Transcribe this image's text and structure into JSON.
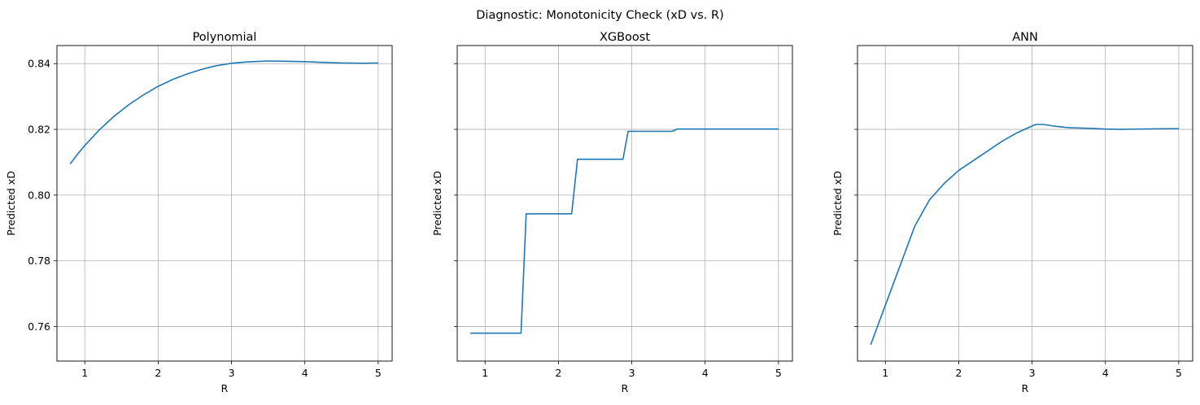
{
  "suptitle": "Diagnostic: Monotonicity Check (xD vs. R)",
  "chart_data": [
    {
      "type": "line",
      "title": "Polynomial",
      "xlabel": "R",
      "ylabel": "Predicted xD",
      "xlim": [
        0.62,
        5.19
      ],
      "ylim": [
        0.7495,
        0.8455
      ],
      "xticks": [
        1,
        2,
        3,
        4,
        5
      ],
      "yticks": [
        0.76,
        0.78,
        0.8,
        0.82,
        0.84
      ],
      "ytick_labels_visible": true,
      "grid": true,
      "line_color": "#1f77b4",
      "x": [
        0.8,
        0.9,
        1.0,
        1.2,
        1.4,
        1.6,
        1.8,
        2.0,
        2.2,
        2.4,
        2.6,
        2.8,
        3.0,
        3.2,
        3.5,
        3.8,
        4.0,
        4.2,
        4.5,
        4.8,
        5.0
      ],
      "y": [
        0.8095,
        0.8124,
        0.8151,
        0.8199,
        0.824,
        0.8275,
        0.8305,
        0.8331,
        0.8352,
        0.8369,
        0.8383,
        0.8394,
        0.8401,
        0.8405,
        0.8408,
        0.8407,
        0.8406,
        0.8404,
        0.8402,
        0.8401,
        0.8402
      ]
    },
    {
      "type": "line",
      "title": "XGBoost",
      "xlabel": "R",
      "ylabel": "Predicted xD",
      "xlim": [
        0.62,
        5.19
      ],
      "ylim": [
        0.7495,
        0.8455
      ],
      "xticks": [
        1,
        2,
        3,
        4,
        5
      ],
      "yticks": [
        0.76,
        0.78,
        0.8,
        0.82,
        0.84
      ],
      "ytick_labels_visible": false,
      "grid": true,
      "line_color": "#1f77b4",
      "x": [
        0.8,
        1.49,
        1.56,
        2.18,
        2.26,
        2.88,
        2.95,
        3.55,
        3.62,
        5.0
      ],
      "y": [
        0.758,
        0.758,
        0.7943,
        0.7943,
        0.8109,
        0.8109,
        0.8194,
        0.8194,
        0.8201,
        0.8201
      ]
    },
    {
      "type": "line",
      "title": "ANN",
      "xlabel": "R",
      "ylabel": "Predicted xD",
      "xlim": [
        0.62,
        5.19
      ],
      "ylim": [
        0.7495,
        0.8455
      ],
      "xticks": [
        1,
        2,
        3,
        4,
        5
      ],
      "yticks": [
        0.76,
        0.78,
        0.8,
        0.82,
        0.84
      ],
      "ytick_labels_visible": false,
      "grid": true,
      "line_color": "#1f77b4",
      "x": [
        0.8,
        1.0,
        1.2,
        1.4,
        1.6,
        1.8,
        2.0,
        2.2,
        2.4,
        2.6,
        2.8,
        2.95,
        3.05,
        3.15,
        3.3,
        3.5,
        3.8,
        4.0,
        4.2,
        4.5,
        4.8,
        5.0
      ],
      "y": [
        0.7545,
        0.7665,
        0.7785,
        0.7905,
        0.7985,
        0.8035,
        0.8075,
        0.8105,
        0.8135,
        0.8165,
        0.819,
        0.8205,
        0.8215,
        0.8215,
        0.821,
        0.8205,
        0.8203,
        0.8201,
        0.82,
        0.8201,
        0.8202,
        0.8202
      ]
    }
  ]
}
